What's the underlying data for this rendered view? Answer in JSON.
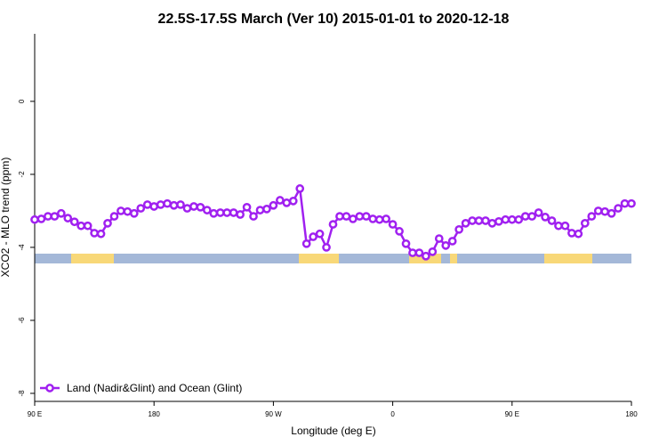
{
  "chart_data": {
    "type": "line",
    "title": "22.5S-17.5S March (Ver 10)   2015-01-01 to 2020-12-18",
    "x_label": "Longitude (deg E)",
    "y_label": "XCO2 - MLO trend (ppm)",
    "x": [
      90,
      95,
      100,
      105,
      110,
      115,
      120,
      125,
      130,
      135,
      140,
      145,
      150,
      155,
      160,
      165,
      170,
      175,
      180,
      185,
      190,
      195,
      200,
      205,
      210,
      215,
      220,
      225,
      230,
      235,
      240,
      245,
      250,
      255,
      260,
      265,
      270,
      275,
      280,
      285,
      290,
      295,
      300,
      305,
      310,
      315,
      320,
      325,
      330,
      335,
      340,
      345,
      350,
      355,
      360,
      365,
      370,
      375,
      380,
      385,
      390,
      395,
      400,
      405,
      410,
      415,
      420,
      425,
      430,
      435,
      440,
      445,
      450,
      455,
      460,
      465,
      470,
      475,
      480,
      485,
      490,
      495,
      500,
      505,
      510,
      515,
      520,
      525,
      530,
      535,
      540
    ],
    "series": [
      {
        "name": "Land (Nadir&Glint) and Ocean (Glint)",
        "color": "#a020f0",
        "values": [
          -3.24,
          -3.22,
          -3.15,
          -3.15,
          -3.07,
          -3.2,
          -3.3,
          -3.41,
          -3.41,
          -3.61,
          -3.63,
          -3.34,
          -3.15,
          -3.0,
          -3.02,
          -3.07,
          -2.93,
          -2.83,
          -2.88,
          -2.83,
          -2.8,
          -2.85,
          -2.83,
          -2.93,
          -2.88,
          -2.9,
          -2.98,
          -3.07,
          -3.05,
          -3.05,
          -3.05,
          -3.1,
          -2.9,
          -3.15,
          -2.98,
          -2.95,
          -2.85,
          -2.71,
          -2.78,
          -2.73,
          -2.39,
          -3.9,
          -3.71,
          -3.63,
          -4.0,
          -3.37,
          -3.15,
          -3.15,
          -3.22,
          -3.15,
          -3.15,
          -3.22,
          -3.24,
          -3.22,
          -3.37,
          -3.56,
          -3.9,
          -4.15,
          -4.15,
          -4.24,
          -4.12,
          -3.76,
          -3.95,
          -3.83,
          -3.51,
          -3.34,
          -3.27,
          -3.27,
          -3.27,
          -3.34,
          -3.29,
          -3.24,
          -3.24,
          -3.24,
          -3.15,
          -3.15,
          -3.05,
          -3.17,
          -3.27,
          -3.41,
          -3.41,
          -3.61,
          -3.63,
          -3.34,
          -3.15,
          -3.0,
          -3.02,
          -3.07,
          -2.93,
          -2.8,
          -2.8
        ]
      }
    ],
    "xlim": [
      90,
      540
    ],
    "xticks": [
      {
        "value": 90,
        "label": "90 E"
      },
      180,
      {
        "value": 270,
        "label": "90 W"
      },
      {
        "value": 360,
        "label": "0"
      },
      {
        "value": 450,
        "label": "90 E"
      },
      {
        "value": 540,
        "label": "180"
      }
    ],
    "ylim": [
      -8.22,
      1.85
    ],
    "yticks": [
      0,
      -2,
      -4,
      -6,
      -8
    ],
    "legend": "bottom-left"
  }
}
